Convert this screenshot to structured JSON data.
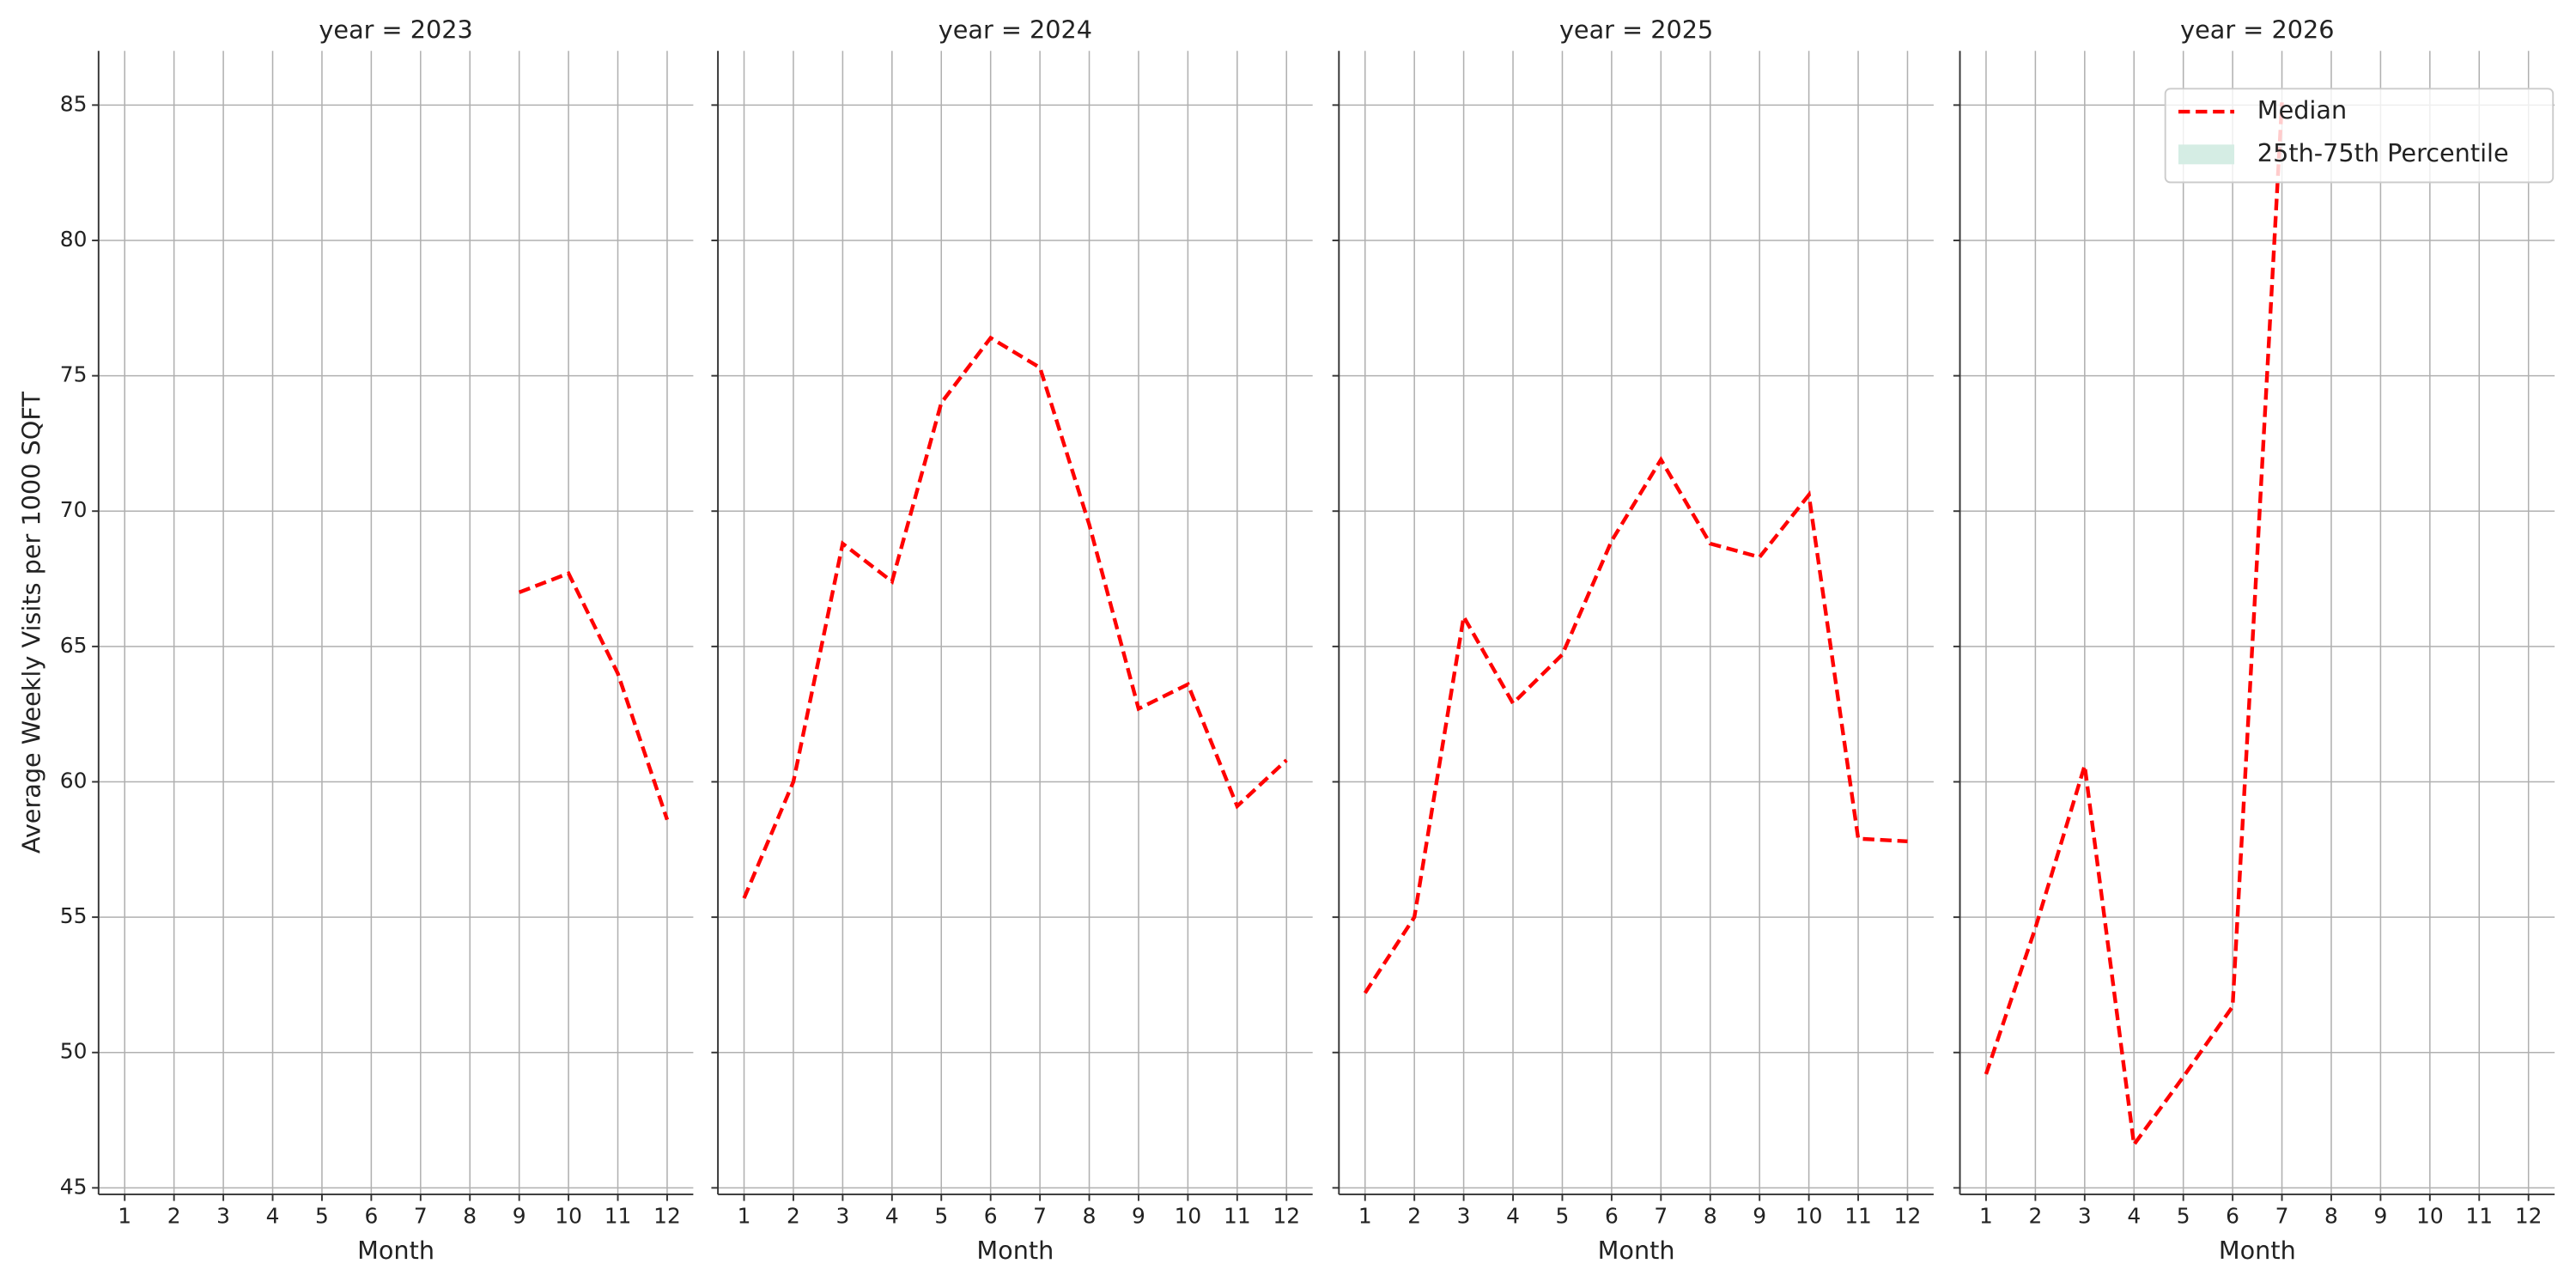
{
  "chart_data": [
    {
      "type": "line",
      "title": "year = 2023",
      "xlabel": "Month",
      "ylabel": "Average Weekly Visits per 1000 SQFT",
      "x": [
        1,
        2,
        3,
        4,
        5,
        6,
        7,
        8,
        9,
        10,
        11,
        12
      ],
      "series": [
        {
          "color": "#ff0000",
          "values": [
            null,
            null,
            null,
            null,
            null,
            null,
            null,
            null,
            67.0,
            67.7,
            64.0,
            58.6
          ]
        }
      ],
      "xlim": [
        0.47,
        12.53
      ],
      "xticks": [
        1,
        2,
        3,
        4,
        5,
        6,
        7,
        8,
        9,
        10,
        11,
        12
      ],
      "ylim": [
        44.76,
        87.0
      ],
      "yticks": [
        45,
        50,
        55,
        60,
        65,
        70,
        75,
        80,
        85
      ],
      "grid": true
    },
    {
      "type": "line",
      "title": "year = 2024",
      "xlabel": "Month",
      "x": [
        1,
        2,
        3,
        4,
        5,
        6,
        7,
        8,
        9,
        10,
        11,
        12
      ],
      "series": [
        {
          "color": "#ff0000",
          "values": [
            55.7,
            60.0,
            68.8,
            67.4,
            74.0,
            76.4,
            75.3,
            69.5,
            62.7,
            63.6,
            59.1,
            60.8
          ]
        }
      ],
      "xlim": [
        0.47,
        12.53
      ],
      "xticks": [
        1,
        2,
        3,
        4,
        5,
        6,
        7,
        8,
        9,
        10,
        11,
        12
      ],
      "ylim": [
        44.76,
        87.0
      ],
      "yticks": [
        45,
        50,
        55,
        60,
        65,
        70,
        75,
        80,
        85
      ],
      "grid": true
    },
    {
      "type": "line",
      "title": "year = 2025",
      "xlabel": "Month",
      "x": [
        1,
        2,
        3,
        4,
        5,
        6,
        7,
        8,
        9,
        10,
        11,
        12
      ],
      "series": [
        {
          "color": "#ff0000",
          "values": [
            52.2,
            55.0,
            66.1,
            62.9,
            64.7,
            68.9,
            71.9,
            68.8,
            68.3,
            70.6,
            57.9,
            57.8
          ]
        }
      ],
      "xlim": [
        0.47,
        12.53
      ],
      "xticks": [
        1,
        2,
        3,
        4,
        5,
        6,
        7,
        8,
        9,
        10,
        11,
        12
      ],
      "ylim": [
        44.76,
        87.0
      ],
      "yticks": [
        45,
        50,
        55,
        60,
        65,
        70,
        75,
        80,
        85
      ],
      "grid": true
    },
    {
      "type": "line",
      "title": "year = 2026",
      "xlabel": "Month",
      "x": [
        1,
        2,
        3,
        4,
        5,
        6,
        7,
        8,
        9,
        10,
        11,
        12
      ],
      "series": [
        {
          "name": "Median",
          "color": "#ff0000",
          "values": [
            49.2,
            54.6,
            60.6,
            46.6,
            49.1,
            51.7,
            85.1,
            null,
            null,
            null,
            null,
            null
          ]
        }
      ],
      "band": {
        "name": "25th-75th Percentile",
        "color": "#d5ede4"
      },
      "legend": "upper right",
      "xlim": [
        0.47,
        12.53
      ],
      "xticks": [
        1,
        2,
        3,
        4,
        5,
        6,
        7,
        8,
        9,
        10,
        11,
        12
      ],
      "ylim": [
        44.76,
        87.0
      ],
      "yticks": [
        45,
        50,
        55,
        60,
        65,
        70,
        75,
        80,
        85
      ],
      "grid": true
    }
  ]
}
